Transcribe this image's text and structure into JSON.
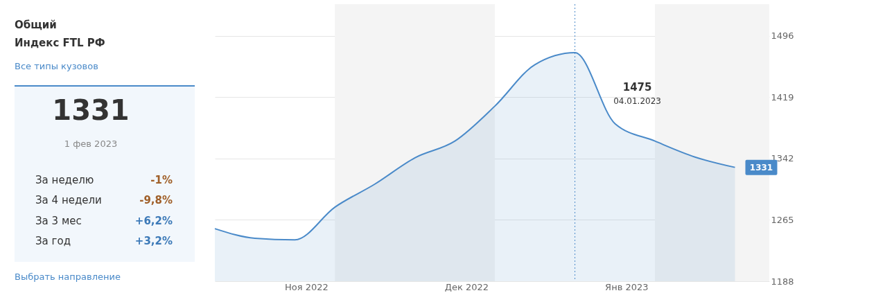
{
  "chart_data": [
    {
      "type": "other",
      "title": "Общий",
      "subtitle": "Индекс FTL РФ",
      "annotations": [
        "Все типы кузовов",
        "1331",
        "1 фев 2023",
        "За неделю",
        "-1%",
        "За 4 недели",
        "-9,8%",
        "За 3 мес",
        "+6,2%",
        "За год",
        "+3,2%",
        "Выбрать направление"
      ]
    },
    {
      "type": "area",
      "x": [
        "2022-11-02",
        "2022-11-09",
        "2022-11-16",
        "2022-11-23",
        "2022-11-30",
        "2022-12-07",
        "2022-12-14",
        "2022-12-21",
        "2022-12-28",
        "2023-01-04",
        "2023-01-11",
        "2023-01-18",
        "2023-01-25",
        "2023-02-01"
      ],
      "series": [
        {
          "color": "#4a8ac9",
          "values": [
            1254,
            1242,
            1240,
            1281,
            1310,
            1343,
            1364,
            1408,
            1460,
            1475,
            1386,
            1364,
            1344,
            1331
          ]
        }
      ],
      "xlim": [
        "2022-11-02",
        "2023-02-07"
      ],
      "xticks": [
        {
          "value": "2022-11-18",
          "label": "Ноя 2022"
        },
        {
          "value": "2022-12-16",
          "label": "Дек 2022"
        },
        {
          "value": "2023-01-13",
          "label": "Янв 2023"
        }
      ],
      "ylim": [
        1188,
        1536
      ],
      "yticks": [
        1188,
        1265,
        1342,
        1419,
        1496
      ],
      "grid": "y",
      "marker": "none",
      "bands": [
        {
          "axis": "x",
          "from": "2022-11-23",
          "to": "2022-12-21",
          "color": "#f4f4f4"
        },
        {
          "axis": "x",
          "from": "2023-01-18",
          "to": "2023-02-07",
          "color": "#f4f4f4"
        }
      ],
      "ref_lines": [
        {
          "axis": "x",
          "value": "2023-01-04",
          "line_style": "dotted",
          "color": "#4a8ac9"
        }
      ],
      "annotations": [
        "1475",
        "04.01.2023",
        {
          "text": "1331",
          "x": "2023-02-01",
          "y": 1331
        }
      ]
    }
  ]
}
